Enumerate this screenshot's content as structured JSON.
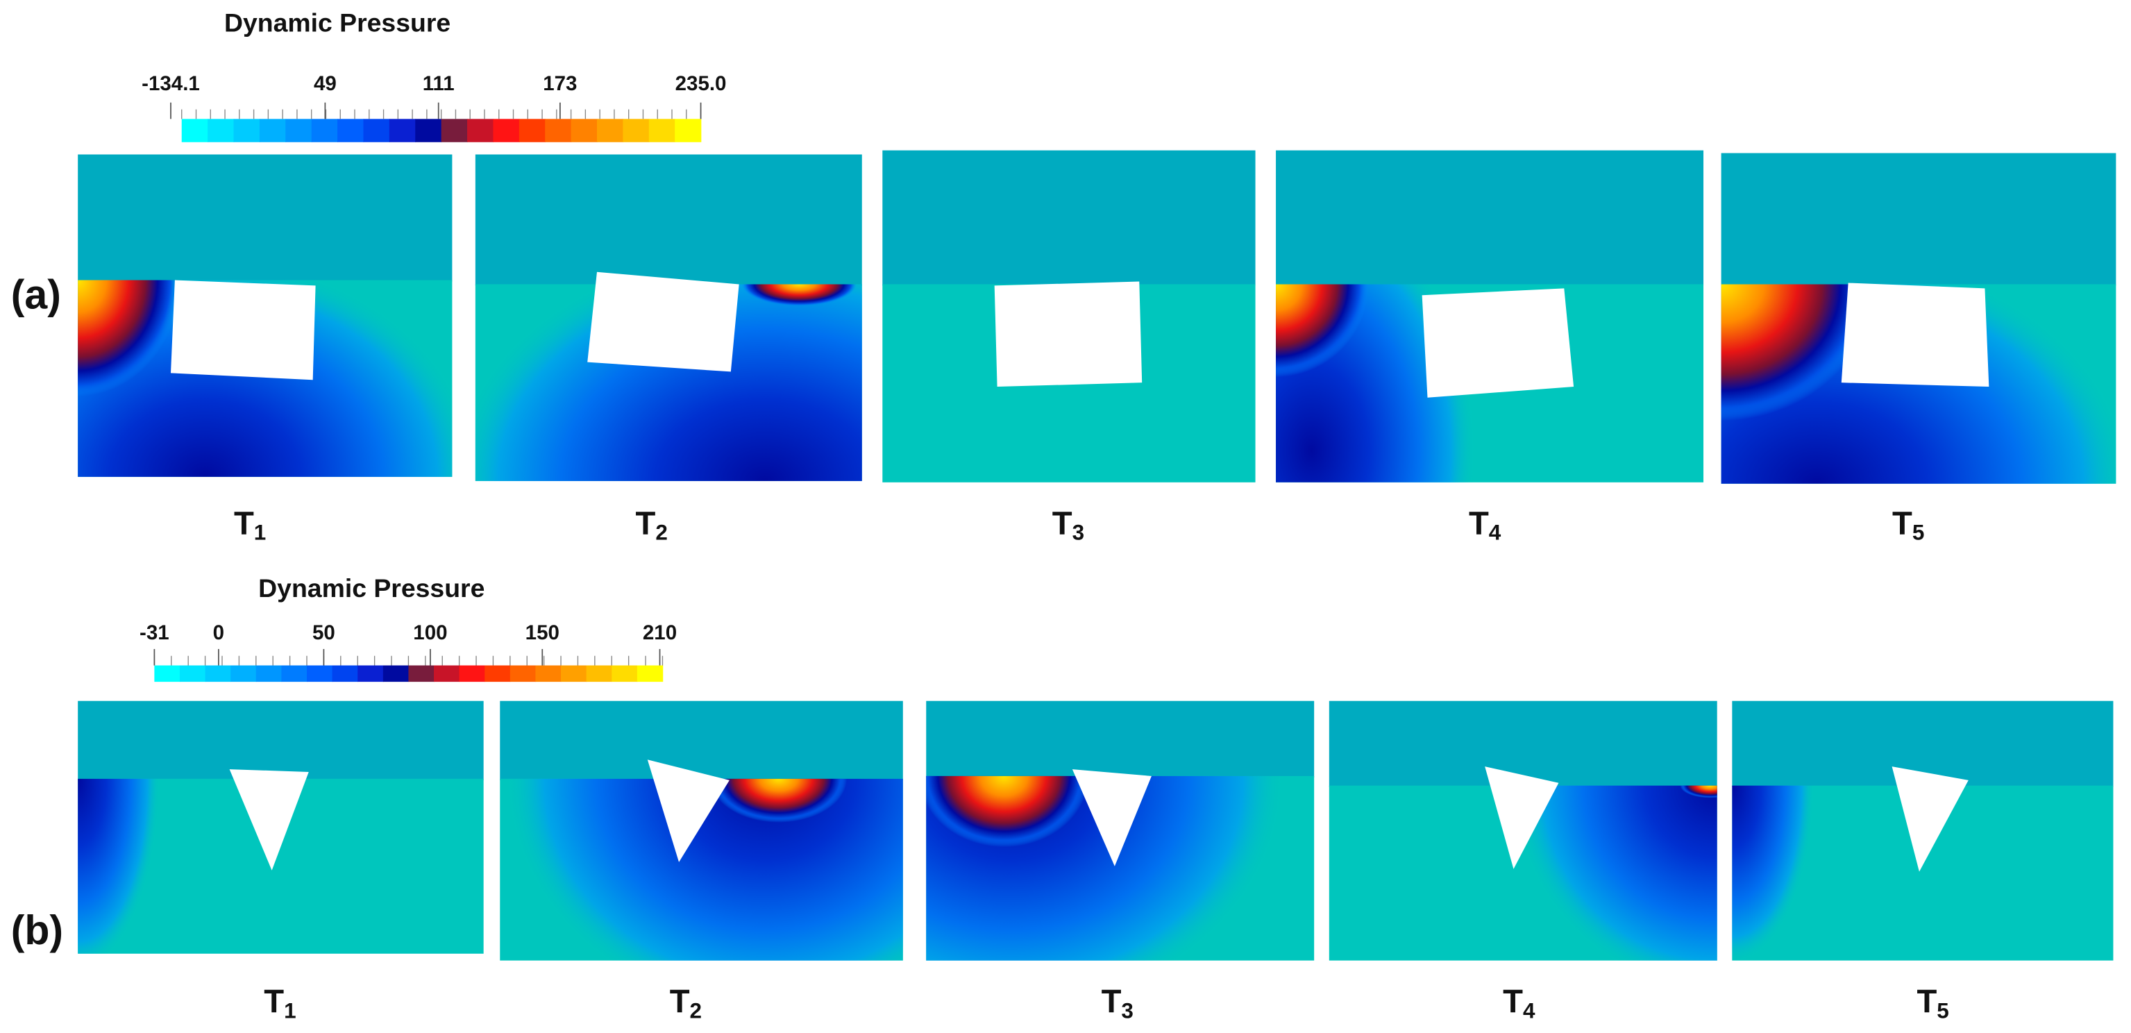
{
  "figure": {
    "rows": [
      {
        "label": "(a)",
        "colorbar": {
          "title": "Dynamic Pressure",
          "ticks": [
            "-134.1",
            "49",
            "111",
            "173",
            "235.0"
          ]
        },
        "panels": [
          {
            "label": "T",
            "subscript": "1"
          },
          {
            "label": "T",
            "subscript": "2"
          },
          {
            "label": "T",
            "subscript": "3"
          },
          {
            "label": "T",
            "subscript": "4"
          },
          {
            "label": "T",
            "subscript": "5"
          }
        ]
      },
      {
        "label": "(b)",
        "colorbar": {
          "title": "Dynamic Pressure",
          "ticks": [
            "-31",
            "0",
            "50",
            "100",
            "150",
            "210"
          ]
        },
        "panels": [
          {
            "label": "T",
            "subscript": "1"
          },
          {
            "label": "T",
            "subscript": "2"
          },
          {
            "label": "T",
            "subscript": "3"
          },
          {
            "label": "T",
            "subscript": "4"
          },
          {
            "label": "T",
            "subscript": "5"
          }
        ]
      }
    ]
  }
}
